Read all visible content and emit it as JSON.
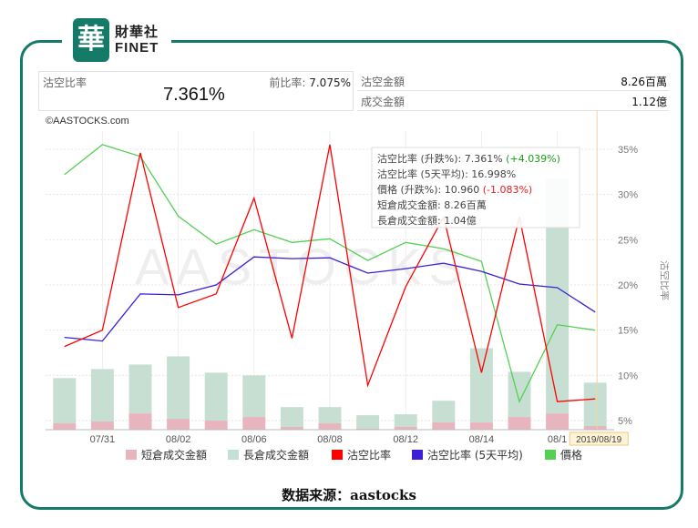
{
  "logo": {
    "brand_cn": "財華社",
    "brand_en": "FINET",
    "seal_char": "華"
  },
  "stats": {
    "short_ratio_label": "沽空比率",
    "short_ratio_value": "7.361%",
    "prev_ratio_label": "前比率:",
    "prev_ratio_value": "7.075%",
    "short_turnover_label": "沽空金額",
    "short_turnover_value": "8.26百萬",
    "turnover_label": "成交金額",
    "turnover_value": "1.12億"
  },
  "chart_data": {
    "type": "bar+line",
    "copyright": "©AASTOCKS.com",
    "watermark": "AASTOCKS",
    "x_tick_labels": [
      "07/31",
      "08/02",
      "08/06",
      "08/08",
      "08/12",
      "08/14",
      "08/1"
    ],
    "x_tick_index": [
      1,
      3,
      5,
      7,
      9,
      11,
      13
    ],
    "right_axis_title": "沽空比率",
    "right_axis_ticks": [
      "35%",
      "30%",
      "25%",
      "20%",
      "15%",
      "10%",
      "5%"
    ],
    "right_axis_values": [
      35,
      30,
      25,
      20,
      15,
      10,
      5
    ],
    "ylim_ratio": [
      4,
      37
    ],
    "dates_index": [
      0,
      1,
      2,
      3,
      4,
      5,
      6,
      7,
      8,
      9,
      10,
      11,
      12,
      13,
      14
    ],
    "series": [
      {
        "name": "短倉成交金額",
        "kind": "bar",
        "color": "#e8b4be",
        "values": [
          0.7,
          0.9,
          1.8,
          1.2,
          1.0,
          1.4,
          0.3,
          0.7,
          0.1,
          0.3,
          0.8,
          0.8,
          1.4,
          1.8,
          0.4
        ]
      },
      {
        "name": "長倉成交金額",
        "kind": "bar",
        "color": "#c7dfd3",
        "values": [
          5.0,
          5.8,
          5.4,
          6.9,
          5.3,
          4.6,
          2.2,
          1.8,
          1.5,
          1.4,
          2.4,
          8.2,
          5.0,
          26.0,
          4.8
        ]
      },
      {
        "name": "沽空比率",
        "kind": "line",
        "color": "#ff0000",
        "values": [
          13.2,
          15.0,
          34.6,
          17.5,
          19.0,
          29.6,
          14.1,
          35.5,
          8.9,
          19.8,
          27.5,
          10.3,
          27.5,
          7.1,
          7.4
        ]
      },
      {
        "name": "沽空比率 (5天平均)",
        "kind": "line",
        "color": "#3a1fd6",
        "values": [
          14.2,
          13.8,
          19.0,
          18.9,
          20.0,
          23.1,
          22.9,
          23.0,
          21.3,
          21.8,
          22.4,
          21.5,
          20.1,
          19.7,
          17.0
        ]
      },
      {
        "name": "價格",
        "kind": "line",
        "color": "#55d055",
        "values": [
          32.2,
          35.5,
          34.2,
          27.6,
          24.5,
          26.1,
          24.7,
          25.1,
          22.7,
          24.7,
          24.0,
          22.6,
          7.1,
          15.6,
          15.0
        ]
      }
    ],
    "highlight_date": "2019/08/19",
    "tooltip": [
      {
        "label": "沽空比率 (升跌%): ",
        "value": "7.361%",
        "extra": " (+4.039%)",
        "extra_color": "#1a9e1a"
      },
      {
        "label": "沽空比率 (5天平均): ",
        "value": "16.998%",
        "extra": "",
        "extra_color": ""
      },
      {
        "label": "價格 (升跌%): ",
        "value": "10.960",
        "extra": " (-1.083%)",
        "extra_color": "#e02020"
      },
      {
        "label": "短倉成交金額: ",
        "value": "8.26百萬",
        "extra": "",
        "extra_color": ""
      },
      {
        "label": "長倉成交金額: ",
        "value": "1.04億",
        "extra": "",
        "extra_color": ""
      }
    ]
  },
  "footer": "数据来源：aastocks"
}
